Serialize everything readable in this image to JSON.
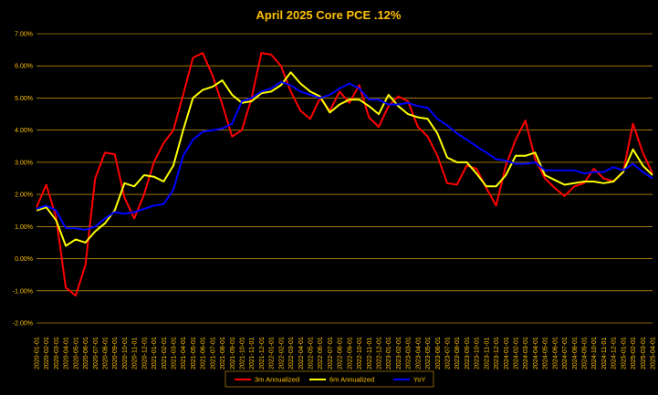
{
  "chart_data": {
    "type": "line",
    "title": "April 2025 Core PCE .12%",
    "xlabel": "",
    "ylabel": "",
    "ylim": [
      -2.0,
      7.0
    ],
    "yticks": [
      "-2.00%",
      "-1.00%",
      "0.00%",
      "1.00%",
      "2.00%",
      "3.00%",
      "4.00%",
      "5.00%",
      "6.00%",
      "7.00%"
    ],
    "grid": true,
    "legend_position": "bottom",
    "background": "#000000",
    "text_color": "#FFC000",
    "grid_color": "#FFC000",
    "categories": [
      "2020-01-01",
      "2020-02-01",
      "2020-03-01",
      "2020-04-01",
      "2020-05-01",
      "2020-06-01",
      "2020-07-01",
      "2020-08-01",
      "2020-09-01",
      "2020-10-01",
      "2020-11-01",
      "2020-12-01",
      "2021-01-01",
      "2021-02-01",
      "2021-03-01",
      "2021-04-01",
      "2021-05-01",
      "2021-06-01",
      "2021-07-01",
      "2021-08-01",
      "2021-09-01",
      "2021-10-01",
      "2021-11-01",
      "2021-12-01",
      "2022-01-01",
      "2022-02-01",
      "2022-03-01",
      "2022-04-01",
      "2022-05-01",
      "2022-06-01",
      "2022-07-01",
      "2022-08-01",
      "2022-09-01",
      "2022-10-01",
      "2022-11-01",
      "2022-12-01",
      "2023-01-01",
      "2023-02-01",
      "2023-03-01",
      "2023-04-01",
      "2023-05-01",
      "2023-06-01",
      "2023-07-01",
      "2023-08-01",
      "2023-09-01",
      "2023-10-01",
      "2023-11-01",
      "2023-12-01",
      "2024-01-01",
      "2024-02-01",
      "2024-03-01",
      "2024-04-01",
      "2024-05-01",
      "2024-06-01",
      "2024-07-01",
      "2024-08-01",
      "2024-09-01",
      "2024-10-01",
      "2024-11-01",
      "2024-12-01",
      "2025-01-01",
      "2025-02-01",
      "2025-03-01",
      "2025-04-01"
    ],
    "series": [
      {
        "name": "3m Annualized",
        "color": "#FF0000",
        "values": [
          1.6,
          2.3,
          1.3,
          -0.9,
          -1.15,
          -0.2,
          2.5,
          3.3,
          3.25,
          1.9,
          1.25,
          2.0,
          3.0,
          3.6,
          4.0,
          5.1,
          6.25,
          6.4,
          5.7,
          4.8,
          3.8,
          4.0,
          5.0,
          6.4,
          6.35,
          6.0,
          5.2,
          4.6,
          4.35,
          5.0,
          4.6,
          5.2,
          4.85,
          5.4,
          4.4,
          4.1,
          4.75,
          5.05,
          4.9,
          4.1,
          3.8,
          3.2,
          2.35,
          2.3,
          2.9,
          2.8,
          2.2,
          1.65,
          2.9,
          3.7,
          4.3,
          3.1,
          2.5,
          2.2,
          1.95,
          2.25,
          2.35,
          2.8,
          2.5,
          2.4,
          2.7,
          4.2,
          3.3,
          2.65
        ]
      },
      {
        "name": "6m Annualized",
        "color": "#FFFF00",
        "values": [
          1.5,
          1.6,
          1.2,
          0.4,
          0.6,
          0.5,
          0.85,
          1.1,
          1.5,
          2.35,
          2.25,
          2.6,
          2.55,
          2.4,
          2.9,
          4.0,
          5.0,
          5.25,
          5.35,
          5.55,
          5.1,
          4.85,
          4.9,
          5.15,
          5.2,
          5.4,
          5.8,
          5.45,
          5.2,
          5.05,
          4.55,
          4.8,
          4.95,
          4.95,
          4.75,
          4.5,
          5.1,
          4.75,
          4.5,
          4.4,
          4.35,
          3.9,
          3.15,
          3.0,
          3.0,
          2.65,
          2.25,
          2.25,
          2.6,
          3.2,
          3.2,
          3.3,
          2.6,
          2.45,
          2.3,
          2.35,
          2.4,
          2.4,
          2.35,
          2.4,
          2.7,
          3.4,
          2.9,
          2.6
        ]
      },
      {
        "name": "YoY",
        "color": "#0000FF",
        "values": [
          1.55,
          1.65,
          1.5,
          0.95,
          0.95,
          0.9,
          1.0,
          1.25,
          1.45,
          1.4,
          1.45,
          1.55,
          1.65,
          1.7,
          2.15,
          3.2,
          3.7,
          3.95,
          4.0,
          4.05,
          4.2,
          4.9,
          5.0,
          5.2,
          5.3,
          5.5,
          5.4,
          5.2,
          5.1,
          5.0,
          5.1,
          5.3,
          5.45,
          5.3,
          4.95,
          4.95,
          4.8,
          4.8,
          4.85,
          4.75,
          4.7,
          4.35,
          4.15,
          3.9,
          3.7,
          3.5,
          3.3,
          3.1,
          3.05,
          2.95,
          2.95,
          3.0,
          2.75,
          2.75,
          2.75,
          2.75,
          2.65,
          2.7,
          2.7,
          2.85,
          2.75,
          2.95,
          2.7,
          2.5
        ]
      }
    ]
  }
}
